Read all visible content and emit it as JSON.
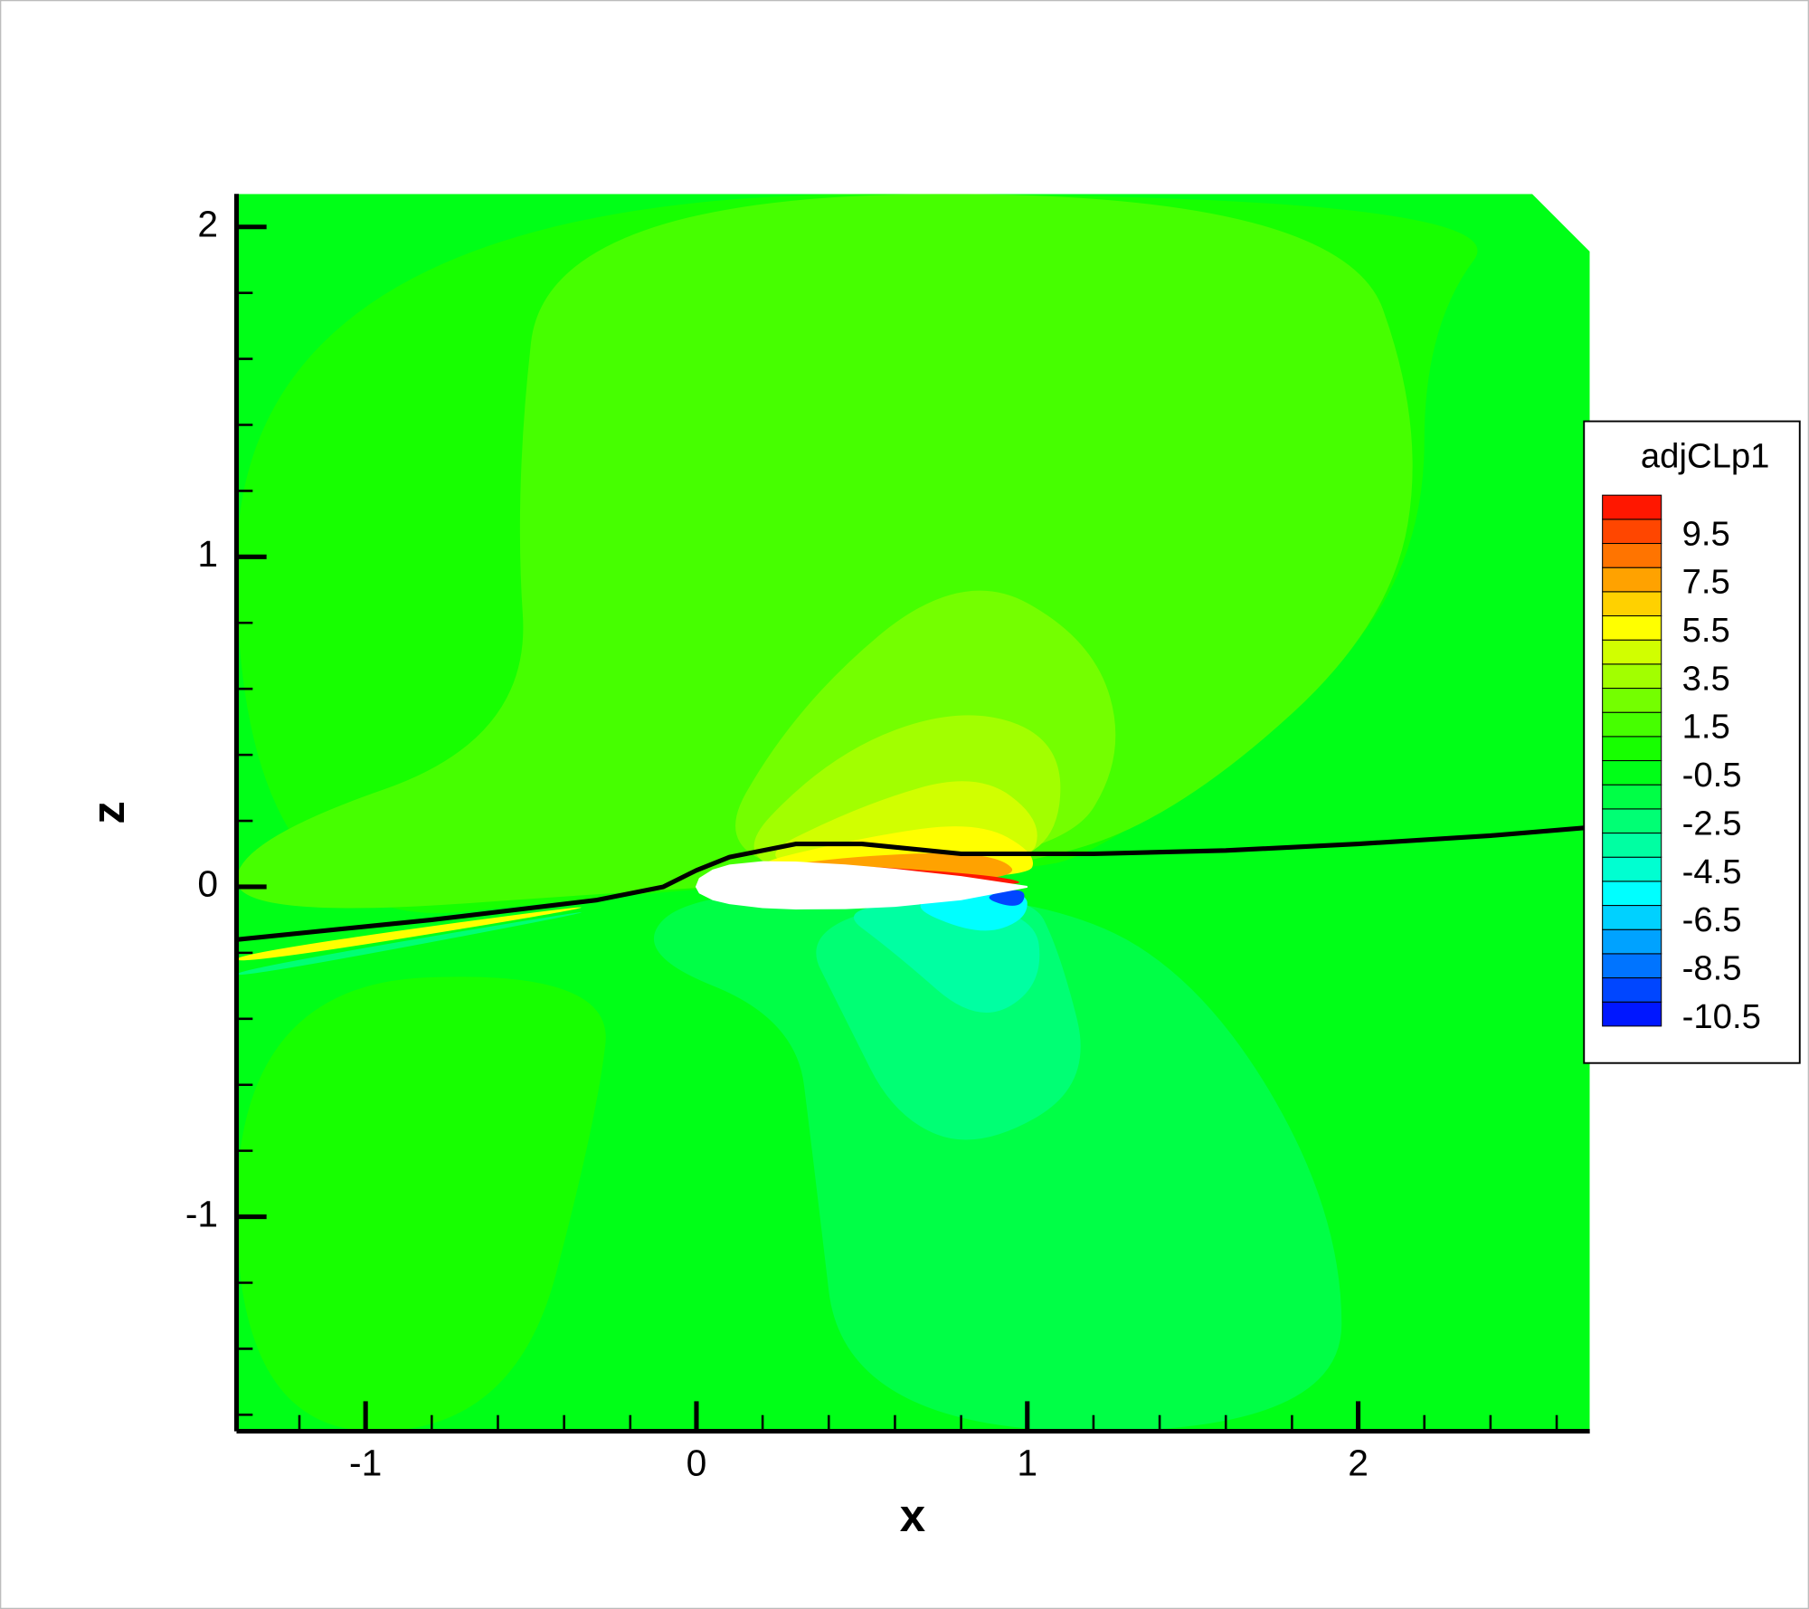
{
  "chart_data": {
    "type": "contour",
    "xlabel": "x",
    "ylabel": "z",
    "xlim": [
      -1.39,
      2.7
    ],
    "ylim": [
      -1.65,
      2.1
    ],
    "xticks": [
      -1,
      0,
      1,
      2
    ],
    "yticks": [
      -1,
      0,
      1,
      2
    ],
    "colormap": "rainbow",
    "colorbar": {
      "title": "adjCLp1",
      "levels": [
        -11,
        -10,
        -9,
        -8,
        -7,
        -6,
        -5,
        -4,
        -3,
        -2,
        -1,
        0,
        1,
        2,
        3,
        4,
        5,
        6,
        7,
        8,
        9,
        10,
        11
      ],
      "ticks": [
        9.5,
        7.5,
        5.5,
        3.5,
        1.5,
        -0.5,
        -2.5,
        -4.5,
        -6.5,
        -8.5,
        -10.5
      ]
    },
    "background_level": -0.5,
    "regions": [
      {
        "level": 0.5,
        "x": [
          -1.39,
          2.5,
          2.2,
          2.2,
          1.8,
          1.2,
          1.0,
          0,
          -1.39
        ],
        "z": [
          2.1,
          2.1,
          1.7,
          1.0,
          0.5,
          0.1,
          0.05,
          0,
          -0.15
        ]
      },
      {
        "level": 0.5,
        "x": [
          -1.39,
          -0.25,
          -0.3,
          -0.55,
          -1.39
        ],
        "z": [
          -0.3,
          -0.25,
          -0.7,
          -1.65,
          -1.65
        ]
      },
      {
        "level": 1.5,
        "x": [
          -1.39,
          -0.5,
          -0.55,
          -0.45,
          1.95,
          2.2,
          2.1,
          1.5,
          1.0,
          0,
          -1.39
        ],
        "z": [
          0.14,
          0.45,
          1.2,
          2.1,
          2.1,
          1.4,
          0.8,
          0.25,
          0.05,
          0,
          -0.1
        ]
      },
      {
        "level": 2.5,
        "x": [
          0,
          0.3,
          0.8,
          1.2,
          1.3,
          1.1
        ],
        "z": [
          0.02,
          0.55,
          0.97,
          0.75,
          0.4,
          0.08
        ]
      },
      {
        "level": 3.5,
        "x": [
          0.05,
          0.4,
          0.8,
          1.1,
          1.1,
          0.9
        ],
        "z": [
          0.03,
          0.4,
          0.55,
          0.45,
          0.15,
          0.05
        ]
      },
      {
        "level": 4.5,
        "x": [
          0.1,
          0.5,
          0.85,
          1.05,
          1.0
        ],
        "z": [
          0.05,
          0.25,
          0.35,
          0.2,
          0.05
        ]
      },
      {
        "level": 5.5,
        "x": [
          0.05,
          0.5,
          0.85,
          1.03,
          1.0
        ],
        "z": [
          0.04,
          0.15,
          0.2,
          0.1,
          0.02
        ]
      },
      {
        "level": 7.5,
        "x": [
          0.02,
          0.4,
          0.9,
          1.0
        ],
        "z": [
          0.02,
          0.09,
          0.11,
          0.01
        ]
      },
      {
        "level": 10.5,
        "x": [
          0.01,
          0.2,
          0.5,
          0.95,
          1.0
        ],
        "z": [
          0.015,
          0.07,
          0.065,
          0.03,
          0.0
        ]
      },
      {
        "level": -1.5,
        "x": [
          -0.2,
          0.3,
          0.35,
          0.45,
          1.95,
          1.95,
          1.55,
          1.05,
          0
        ],
        "z": [
          -0.2,
          -0.4,
          -0.8,
          -1.65,
          -1.65,
          -1.0,
          -0.3,
          -0.02,
          0
        ]
      },
      {
        "level": -2.5,
        "x": [
          0.3,
          0.45,
          0.6,
          0.85,
          1.2,
          1.1,
          1.0
        ],
        "z": [
          -0.1,
          -0.4,
          -0.7,
          -0.8,
          -0.6,
          -0.2,
          0
        ]
      },
      {
        "level": -3.5,
        "x": [
          0.4,
          0.6,
          0.85,
          1.05,
          1.02
        ],
        "z": [
          -0.05,
          -0.2,
          -0.42,
          -0.3,
          -0.05
        ]
      },
      {
        "level": -5.5,
        "x": [
          0.6,
          0.85,
          1.0,
          1.0
        ],
        "z": [
          -0.04,
          -0.15,
          -0.1,
          0
        ]
      },
      {
        "level": -9.5,
        "x": [
          0.85,
          0.98,
          1.0
        ],
        "z": [
          -0.03,
          -0.07,
          0
        ]
      },
      {
        "level": 5.5,
        "x": [
          -1.39,
          0,
          -1.39
        ],
        "z": [
          -0.2,
          -0.01,
          -0.24
        ]
      },
      {
        "level": -2.5,
        "x": [
          -1.39,
          0,
          -1.39
        ],
        "z": [
          -0.25,
          -0.015,
          -0.28
        ]
      }
    ],
    "airfoil": {
      "x": [
        0,
        0.01,
        0.05,
        0.1,
        0.2,
        0.3,
        0.45,
        0.6,
        0.8,
        1.0,
        0.8,
        0.6,
        0.45,
        0.3,
        0.2,
        0.1,
        0.05,
        0.01
      ],
      "z": [
        0,
        0.025,
        0.05,
        0.065,
        0.075,
        0.074,
        0.065,
        0.052,
        0.03,
        0,
        -0.038,
        -0.058,
        -0.065,
        -0.066,
        -0.062,
        -0.05,
        -0.038,
        -0.018
      ]
    },
    "streamline": {
      "x": [
        -1.39,
        -0.8,
        -0.3,
        -0.1,
        0,
        0.1,
        0.3,
        0.5,
        0.8,
        1.0,
        1.2,
        1.6,
        2.0,
        2.4,
        2.7
      ],
      "z": [
        -0.16,
        -0.1,
        -0.04,
        0.0,
        0.05,
        0.09,
        0.13,
        0.13,
        0.1,
        0.1,
        0.1,
        0.11,
        0.13,
        0.155,
        0.18
      ]
    }
  }
}
